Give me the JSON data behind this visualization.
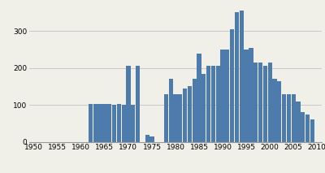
{
  "years": [
    1950,
    1951,
    1952,
    1953,
    1954,
    1955,
    1956,
    1957,
    1958,
    1959,
    1960,
    1961,
    1962,
    1963,
    1964,
    1965,
    1966,
    1967,
    1968,
    1969,
    1970,
    1971,
    1972,
    1973,
    1974,
    1975,
    1976,
    1977,
    1978,
    1979,
    1980,
    1981,
    1982,
    1983,
    1984,
    1985,
    1986,
    1987,
    1988,
    1989,
    1990,
    1991,
    1992,
    1993,
    1994,
    1995,
    1996,
    1997,
    1998,
    1999,
    2000,
    2001,
    2002,
    2003,
    2004,
    2005,
    2006,
    2007,
    2008,
    2009
  ],
  "values": [
    0,
    0,
    0,
    0,
    0,
    0,
    0,
    0,
    0,
    0,
    0,
    0,
    103,
    103,
    103,
    103,
    103,
    100,
    103,
    100,
    205,
    100,
    205,
    0,
    18,
    15,
    0,
    0,
    130,
    170,
    130,
    130,
    145,
    150,
    170,
    240,
    185,
    205,
    205,
    205,
    250,
    250,
    305,
    350,
    355,
    250,
    255,
    215,
    215,
    205,
    215,
    170,
    165,
    130,
    130,
    130,
    110,
    80,
    75,
    60
  ],
  "bar_color": "#4d7cac",
  "background_color": "#f0efe8",
  "ylim": [
    0,
    370
  ],
  "yticks": [
    0,
    100,
    200,
    300
  ],
  "xticks": [
    1950,
    1955,
    1960,
    1965,
    1970,
    1975,
    1980,
    1985,
    1990,
    1995,
    2000,
    2005,
    2010
  ],
  "grid_color": "#c8c8c8",
  "bar_width": 0.9
}
